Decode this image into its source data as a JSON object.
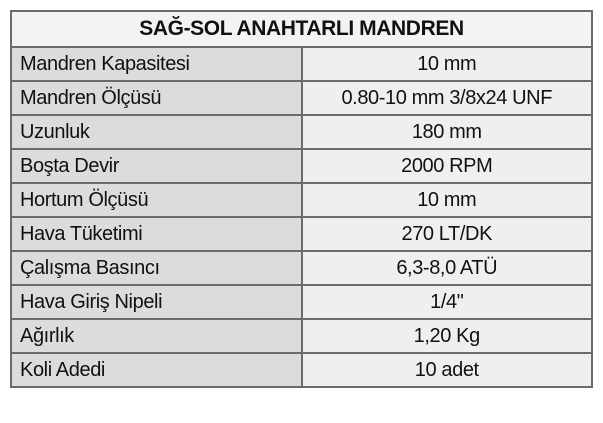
{
  "table": {
    "title": "SAĞ-SOL ANAHTARLI MANDREN",
    "rows": [
      [
        "Mandren Kapasitesi",
        "10 mm"
      ],
      [
        "Mandren Ölçüsü",
        "0.80-10 mm 3/8x24 UNF"
      ],
      [
        "Uzunluk",
        "180 mm"
      ],
      [
        "Boşta Devir",
        "2000 RPM"
      ],
      [
        "Hortum Ölçüsü",
        "10 mm"
      ],
      [
        "Hava Tüketimi",
        "270 LT/DK"
      ],
      [
        "Çalışma Basıncı",
        "6,3-8,0 ATÜ"
      ],
      [
        "Hava Giriş Nipeli",
        "1/4\""
      ],
      [
        "Ağırlık",
        "1,20 Kg"
      ],
      [
        "Koli Adedi",
        "10 adet"
      ]
    ]
  }
}
